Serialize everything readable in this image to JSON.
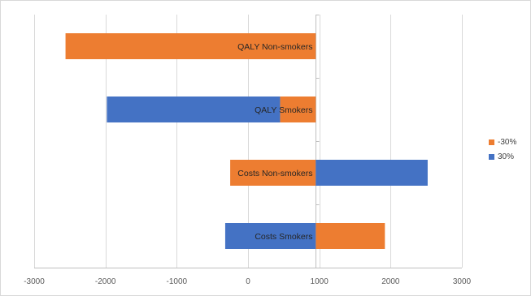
{
  "chart_data": {
    "type": "bar",
    "orientation": "horizontal",
    "stacked": true,
    "categories": [
      "Costs Smokers",
      "Costs Non-smokers",
      "QALY Smokers",
      "QALY Non-smokers"
    ],
    "base_value": 950,
    "series": [
      {
        "name": "-30%",
        "color": "#ed7d31",
        "intervals": [
          [
            950,
            1920
          ],
          [
            -250,
            950
          ],
          [
            450,
            950
          ],
          [
            -2560,
            950
          ]
        ]
      },
      {
        "name": "30%",
        "color": "#4472c4",
        "intervals": [
          [
            -320,
            950
          ],
          [
            950,
            2520
          ],
          [
            -1980,
            450
          ],
          null
        ]
      }
    ],
    "xlim": [
      -3000,
      3000
    ],
    "xticks": [
      -3000,
      -2000,
      -1000,
      0,
      1000,
      2000,
      3000
    ],
    "xtick_labels": [
      "-3000",
      "-2000",
      "-1000",
      "0",
      "1000",
      "2000",
      "3000"
    ],
    "grid": "vertical",
    "legend_position": "right"
  }
}
